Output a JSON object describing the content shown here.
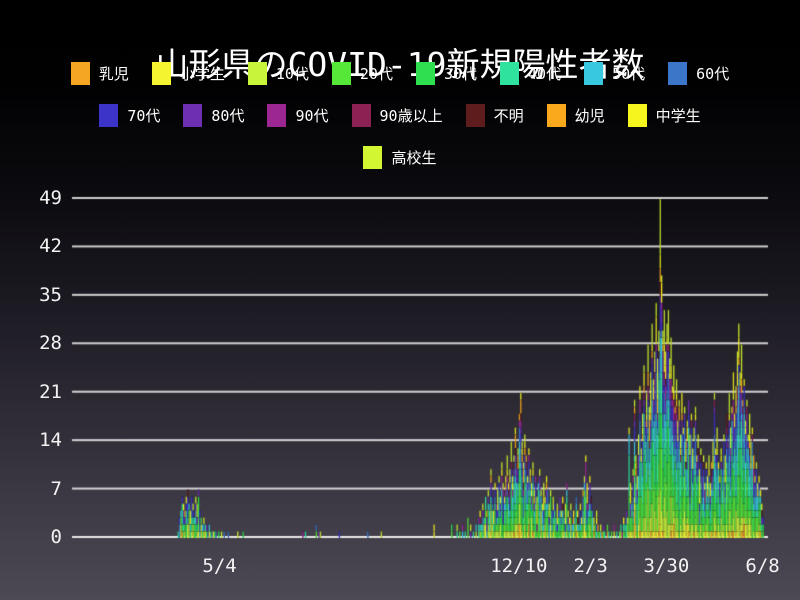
{
  "title": "山形県のCOVID-19新規陽性者数",
  "chart_data": {
    "type": "bar",
    "stacked": true,
    "title": "山形県のCOVID-19新規陽性者数",
    "xlabel": "",
    "ylabel": "",
    "grid": true,
    "legend_position": "top",
    "gridline_color": "#e9e9e9",
    "text_color": "#ffffff",
    "ylim": [
      0,
      49
    ],
    "y_ticks": [
      0,
      7,
      14,
      21,
      28,
      35,
      42,
      49
    ],
    "x_ticks": [
      {
        "label": "5/4",
        "day": 109
      },
      {
        "label": "12/10",
        "day": 330
      },
      {
        "label": "2/3",
        "day": 383
      },
      {
        "label": "3/30",
        "day": 439
      },
      {
        "label": "6/8",
        "day": 510
      }
    ],
    "total_days": 514,
    "categories": [
      {
        "label": "乳児",
        "color": "#f5a623"
      },
      {
        "label": "小学生",
        "color": "#f4f431"
      },
      {
        "label": "10代",
        "color": "#c8f53a"
      },
      {
        "label": "20代",
        "color": "#55e838"
      },
      {
        "label": "30代",
        "color": "#2ee04f"
      },
      {
        "label": "40代",
        "color": "#2fe39e"
      },
      {
        "label": "50代",
        "color": "#38c8df"
      },
      {
        "label": "60代",
        "color": "#3b76c8"
      },
      {
        "label": "70代",
        "color": "#3c33c8"
      },
      {
        "label": "80代",
        "color": "#6f2fb3"
      },
      {
        "label": "90代",
        "color": "#9c2793"
      },
      {
        "label": "90歳以上",
        "color": "#8c2153"
      },
      {
        "label": "不明",
        "color": "#5e1d1c"
      },
      {
        "label": "幼児",
        "color": "#f9a91b"
      },
      {
        "label": "中学生",
        "color": "#f6f61e"
      },
      {
        "label": "高校生",
        "color": "#d2f631"
      }
    ],
    "legend_rows": [
      [
        0,
        1,
        2,
        3,
        4,
        5,
        6,
        7
      ],
      [
        8,
        9,
        10,
        11,
        12,
        13,
        14
      ],
      [
        15
      ]
    ],
    "segment_weights": [
      1,
      3,
      8,
      13,
      12,
      12,
      10,
      8,
      6,
      4,
      2,
      1,
      1,
      2,
      5,
      7
    ],
    "daily_totals": [
      [
        78,
        1
      ],
      [
        79,
        3
      ],
      [
        80,
        4
      ],
      [
        81,
        6
      ],
      [
        82,
        5
      ],
      [
        83,
        4
      ],
      [
        84,
        6
      ],
      [
        85,
        7
      ],
      [
        86,
        5
      ],
      [
        87,
        4
      ],
      [
        88,
        6
      ],
      [
        89,
        5
      ],
      [
        90,
        3
      ],
      [
        91,
        6
      ],
      [
        92,
        5
      ],
      [
        93,
        7
      ],
      [
        94,
        4
      ],
      [
        95,
        3
      ],
      [
        96,
        2
      ],
      [
        97,
        3
      ],
      [
        98,
        2
      ],
      [
        99,
        2
      ],
      [
        100,
        1
      ],
      [
        101,
        2
      ],
      [
        102,
        1
      ],
      [
        103,
        1
      ],
      [
        104,
        1
      ],
      [
        105,
        1
      ],
      [
        106,
        1
      ],
      [
        108,
        1
      ],
      [
        110,
        1
      ],
      [
        112,
        1
      ],
      [
        115,
        1
      ],
      [
        122,
        1
      ],
      [
        126,
        1
      ],
      [
        170,
        1
      ],
      [
        172,
        1
      ],
      [
        180,
        2
      ],
      [
        182,
        1
      ],
      [
        183,
        1
      ],
      [
        197,
        1
      ],
      [
        218,
        1
      ],
      [
        228,
        1
      ],
      [
        267,
        2
      ],
      [
        280,
        2
      ],
      [
        284,
        2
      ],
      [
        286,
        1
      ],
      [
        288,
        2
      ],
      [
        290,
        1
      ],
      [
        292,
        3
      ],
      [
        294,
        2
      ],
      [
        296,
        1
      ],
      [
        298,
        2
      ],
      [
        300,
        3
      ],
      [
        301,
        4
      ],
      [
        302,
        2
      ],
      [
        303,
        5
      ],
      [
        304,
        3
      ],
      [
        305,
        6
      ],
      [
        306,
        4
      ],
      [
        307,
        7
      ],
      [
        308,
        5
      ],
      [
        309,
        10
      ],
      [
        310,
        6
      ],
      [
        311,
        4
      ],
      [
        312,
        8
      ],
      [
        313,
        5
      ],
      [
        314,
        7
      ],
      [
        315,
        9
      ],
      [
        316,
        6
      ],
      [
        317,
        11
      ],
      [
        318,
        8
      ],
      [
        319,
        6
      ],
      [
        320,
        9
      ],
      [
        321,
        12
      ],
      [
        322,
        8
      ],
      [
        323,
        10
      ],
      [
        324,
        14
      ],
      [
        325,
        9
      ],
      [
        326,
        12
      ],
      [
        327,
        16
      ],
      [
        328,
        11
      ],
      [
        329,
        13
      ],
      [
        330,
        18
      ],
      [
        331,
        21
      ],
      [
        332,
        14
      ],
      [
        333,
        11
      ],
      [
        334,
        15
      ],
      [
        335,
        12
      ],
      [
        336,
        9
      ],
      [
        337,
        13
      ],
      [
        338,
        10
      ],
      [
        339,
        8
      ],
      [
        340,
        11
      ],
      [
        341,
        7
      ],
      [
        342,
        9
      ],
      [
        343,
        6
      ],
      [
        344,
        8
      ],
      [
        345,
        10
      ],
      [
        346,
        7
      ],
      [
        347,
        5
      ],
      [
        348,
        8
      ],
      [
        349,
        6
      ],
      [
        350,
        9
      ],
      [
        351,
        7
      ],
      [
        352,
        5
      ],
      [
        353,
        7
      ],
      [
        354,
        4
      ],
      [
        355,
        6
      ],
      [
        356,
        5
      ],
      [
        357,
        3
      ],
      [
        358,
        5
      ],
      [
        359,
        4
      ],
      [
        360,
        6
      ],
      [
        361,
        4
      ],
      [
        362,
        6
      ],
      [
        363,
        3
      ],
      [
        364,
        5
      ],
      [
        365,
        8
      ],
      [
        366,
        4
      ],
      [
        367,
        3
      ],
      [
        368,
        5
      ],
      [
        369,
        2
      ],
      [
        370,
        4
      ],
      [
        371,
        3
      ],
      [
        372,
        6
      ],
      [
        373,
        4
      ],
      [
        374,
        2
      ],
      [
        375,
        5
      ],
      [
        376,
        3
      ],
      [
        377,
        7
      ],
      [
        378,
        9
      ],
      [
        379,
        12
      ],
      [
        380,
        8
      ],
      [
        381,
        5
      ],
      [
        382,
        9
      ],
      [
        383,
        6
      ],
      [
        384,
        4
      ],
      [
        385,
        3
      ],
      [
        386,
        2
      ],
      [
        387,
        4
      ],
      [
        388,
        2
      ],
      [
        389,
        1
      ],
      [
        390,
        2
      ],
      [
        391,
        1
      ],
      [
        392,
        2
      ],
      [
        393,
        1
      ],
      [
        395,
        2
      ],
      [
        396,
        1
      ],
      [
        398,
        1
      ],
      [
        400,
        2
      ],
      [
        402,
        1
      ],
      [
        404,
        1
      ],
      [
        405,
        2
      ],
      [
        406,
        1
      ],
      [
        407,
        3
      ],
      [
        408,
        2
      ],
      [
        409,
        4
      ],
      [
        410,
        3
      ],
      [
        411,
        16
      ],
      [
        412,
        8
      ],
      [
        413,
        5
      ],
      [
        414,
        10
      ],
      [
        415,
        20
      ],
      [
        416,
        12
      ],
      [
        417,
        9
      ],
      [
        418,
        15
      ],
      [
        419,
        22
      ],
      [
        420,
        13
      ],
      [
        421,
        18
      ],
      [
        422,
        25
      ],
      [
        423,
        17
      ],
      [
        424,
        21
      ],
      [
        425,
        28
      ],
      [
        426,
        19
      ],
      [
        427,
        24
      ],
      [
        428,
        31
      ],
      [
        429,
        23
      ],
      [
        430,
        27
      ],
      [
        431,
        34
      ],
      [
        432,
        26
      ],
      [
        433,
        30
      ],
      [
        434,
        49
      ],
      [
        435,
        38
      ],
      [
        436,
        30
      ],
      [
        437,
        33
      ],
      [
        438,
        27
      ],
      [
        439,
        31
      ],
      [
        440,
        33
      ],
      [
        441,
        26
      ],
      [
        442,
        29
      ],
      [
        443,
        22
      ],
      [
        444,
        25
      ],
      [
        445,
        19
      ],
      [
        446,
        23
      ],
      [
        447,
        17
      ],
      [
        448,
        20
      ],
      [
        449,
        15
      ],
      [
        450,
        21
      ],
      [
        451,
        16
      ],
      [
        452,
        19
      ],
      [
        453,
        14
      ],
      [
        454,
        17
      ],
      [
        455,
        20
      ],
      [
        456,
        15
      ],
      [
        457,
        18
      ],
      [
        458,
        13
      ],
      [
        459,
        16
      ],
      [
        460,
        19
      ],
      [
        461,
        12
      ],
      [
        462,
        15
      ],
      [
        463,
        10
      ],
      [
        464,
        13
      ],
      [
        465,
        9
      ],
      [
        466,
        12
      ],
      [
        467,
        8
      ],
      [
        468,
        11
      ],
      [
        469,
        9
      ],
      [
        470,
        12
      ],
      [
        471,
        8
      ],
      [
        472,
        11
      ],
      [
        473,
        14
      ],
      [
        474,
        21
      ],
      [
        475,
        13
      ],
      [
        476,
        16
      ],
      [
        477,
        11
      ],
      [
        478,
        9
      ],
      [
        479,
        13
      ],
      [
        480,
        10
      ],
      [
        481,
        15
      ],
      [
        482,
        12
      ],
      [
        483,
        18
      ],
      [
        484,
        14
      ],
      [
        485,
        21
      ],
      [
        486,
        16
      ],
      [
        487,
        19
      ],
      [
        488,
        24
      ],
      [
        489,
        18
      ],
      [
        490,
        22
      ],
      [
        491,
        27
      ],
      [
        492,
        31
      ],
      [
        493,
        24
      ],
      [
        494,
        28
      ],
      [
        495,
        20
      ],
      [
        496,
        23
      ],
      [
        497,
        17
      ],
      [
        498,
        20
      ],
      [
        499,
        15
      ],
      [
        500,
        18
      ],
      [
        501,
        14
      ],
      [
        502,
        16
      ],
      [
        503,
        12
      ],
      [
        504,
        9
      ],
      [
        505,
        11
      ],
      [
        506,
        8
      ],
      [
        507,
        9
      ],
      [
        508,
        7
      ],
      [
        509,
        5
      ],
      [
        510,
        3
      ]
    ]
  }
}
